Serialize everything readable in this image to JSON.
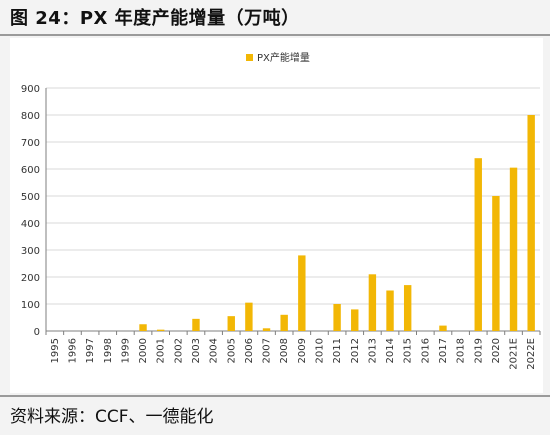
{
  "figure": {
    "title": "图 24：PX 年度产能增量（万吨）",
    "source": "资料来源：CCF、一德能化"
  },
  "colors": {
    "bar": "#F2B705",
    "grid": "#d9d9d9",
    "axis": "#7f7f7f",
    "text": "#333333"
  },
  "chart_data": {
    "type": "bar",
    "categories": [
      "1995",
      "1996",
      "1997",
      "1998",
      "1999",
      "2000",
      "2001",
      "2002",
      "2003",
      "2004",
      "2005",
      "2006",
      "2007",
      "2008",
      "2009",
      "2010",
      "2011",
      "2012",
      "2013",
      "2014",
      "2015",
      "2016",
      "2017",
      "2018",
      "2019",
      "2020",
      "2021E",
      "2022E"
    ],
    "series": [
      {
        "name": "PX产能增量",
        "values": [
          0,
          0,
          0,
          0,
          0,
          25,
          5,
          0,
          45,
          0,
          55,
          105,
          10,
          60,
          280,
          0,
          100,
          80,
          210,
          150,
          170,
          0,
          20,
          0,
          640,
          500,
          605,
          800
        ]
      }
    ],
    "ylim": [
      0,
      900
    ],
    "yticks": [
      0,
      100,
      200,
      300,
      400,
      500,
      600,
      700,
      800,
      900
    ],
    "grid": true,
    "legend_position": "top-center"
  }
}
